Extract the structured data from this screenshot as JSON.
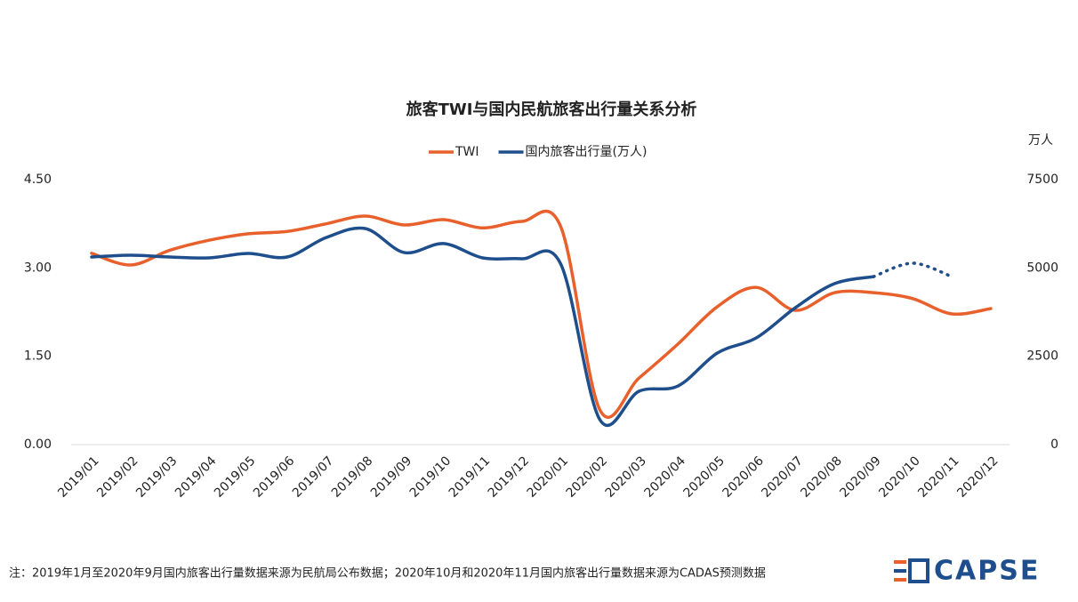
{
  "chart_data": {
    "type": "line",
    "title": "旅客TWI与国内民航旅客出行量关系分析",
    "y2_label": "万人",
    "categories": [
      "2019/01",
      "2019/02",
      "2019/03",
      "2019/04",
      "2019/05",
      "2019/06",
      "2019/07",
      "2019/08",
      "2019/09",
      "2019/10",
      "2019/11",
      "2019/12",
      "2020/01",
      "2020/02",
      "2020/03",
      "2020/04",
      "2020/05",
      "2020/06",
      "2020/07",
      "2020/08",
      "2020/09",
      "2020/10",
      "2020/11",
      "2020/12"
    ],
    "series": [
      {
        "name": "TWI",
        "color": "#e8602c",
        "axis": "y",
        "values": [
          3.25,
          3.05,
          3.3,
          3.47,
          3.58,
          3.62,
          3.75,
          3.88,
          3.73,
          3.82,
          3.68,
          3.79,
          3.7,
          0.59,
          1.13,
          1.71,
          2.34,
          2.67,
          2.28,
          2.58,
          2.58,
          2.48,
          2.22,
          2.31
        ]
      },
      {
        "name": "国内旅客出行量(万人)",
        "color": "#1f4e8c",
        "axis": "y2",
        "dashed_from_index": 20,
        "values": [
          5310,
          5360,
          5310,
          5285,
          5410,
          5310,
          5860,
          6115,
          5435,
          5690,
          5285,
          5260,
          5110,
          705,
          1510,
          1660,
          2590,
          3020,
          3875,
          4555,
          4755,
          5135,
          4755,
          null
        ]
      }
    ],
    "ylim": [
      0,
      4.5
    ],
    "yticks": [
      {
        "value": 0,
        "label": "0.00"
      },
      {
        "value": 1.5,
        "label": "1.50"
      },
      {
        "value": 3,
        "label": "3.00"
      },
      {
        "value": 4.5,
        "label": "4.50"
      }
    ],
    "y2lim": [
      0,
      7500
    ],
    "y2ticks": [
      0,
      2500,
      5000,
      7500
    ],
    "grid": false,
    "legend": "top",
    "note": "注：2019年1月至2020年9月国内旅客出行量数据来源为民航局公布数据；2020年10月和2020年11月国内旅客出行量数据来源为CADAS预测数据",
    "logo": "CAPSE"
  }
}
